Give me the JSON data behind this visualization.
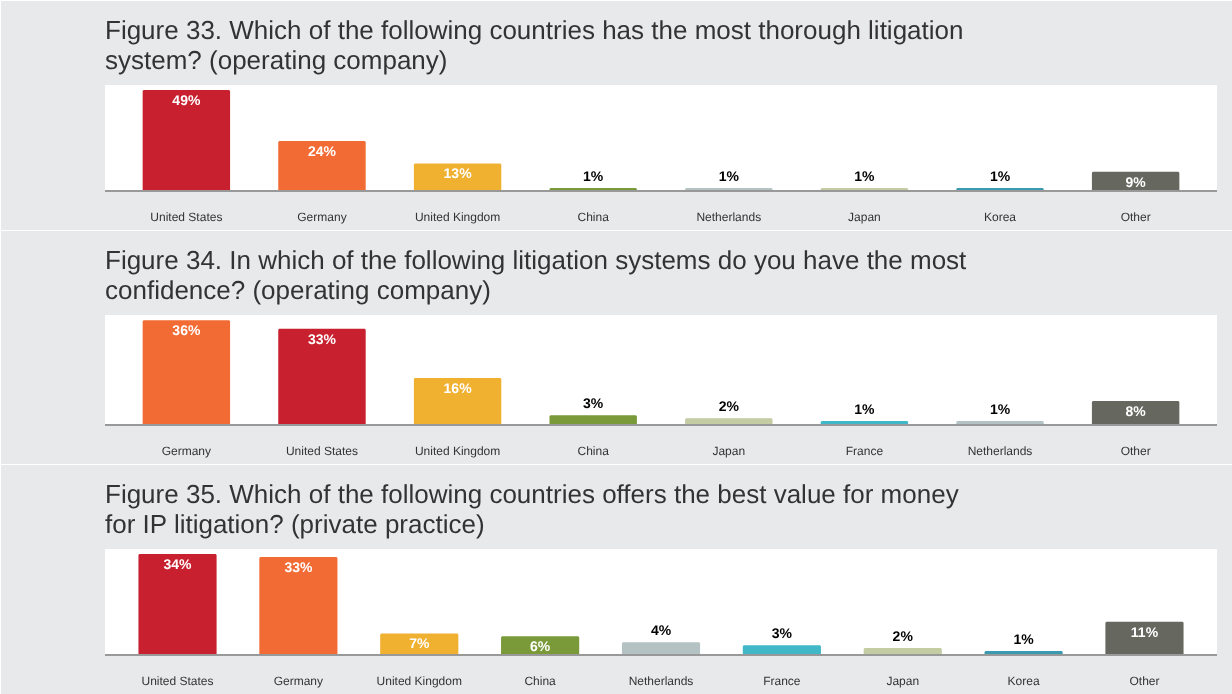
{
  "chart_data": [
    {
      "type": "bar",
      "title": "Figure 33. Which of the following countries has the most thorough litigation system? (operating company)",
      "categories": [
        "United States",
        "Germany",
        "United Kingdom",
        "China",
        "Netherlands",
        "Japan",
        "Korea",
        "Other"
      ],
      "values": [
        49,
        24,
        13,
        1,
        1,
        1,
        1,
        9
      ],
      "colors": [
        "#c8202f",
        "#f26b35",
        "#f0b030",
        "#7a9a3a",
        "#b4c2c4",
        "#c4cca4",
        "#3a9ab0",
        "#666860"
      ],
      "value_labels": [
        "49%",
        "24%",
        "13%",
        "1%",
        "1%",
        "1%",
        "1%",
        "9%"
      ]
    },
    {
      "type": "bar",
      "title": "Figure 34. In which of the following litigation systems do you have the most confidence? (operating company)",
      "categories": [
        "Germany",
        "United States",
        "United Kingdom",
        "China",
        "Japan",
        "France",
        "Netherlands",
        "Other"
      ],
      "values": [
        36,
        33,
        16,
        3,
        2,
        1,
        1,
        8
      ],
      "colors": [
        "#f26b35",
        "#c8202f",
        "#f0b030",
        "#7a9a3a",
        "#c4cca4",
        "#40b8c8",
        "#b4c2c4",
        "#666860"
      ],
      "value_labels": [
        "36%",
        "33%",
        "16%",
        "3%",
        "2%",
        "1%",
        "1%",
        "8%"
      ]
    },
    {
      "type": "bar",
      "title": "Figure 35. Which of the following countries offers the best value for money for IP litigation? (private practice)",
      "categories": [
        "United States",
        "Germany",
        "United Kingdom",
        "China",
        "Netherlands",
        "France",
        "Japan",
        "Korea",
        "Other"
      ],
      "values": [
        34,
        33,
        7,
        6,
        4,
        3,
        2,
        1,
        11
      ],
      "colors": [
        "#c8202f",
        "#f26b35",
        "#f0b030",
        "#7a9a3a",
        "#b4c2c4",
        "#40b8c8",
        "#c4cca4",
        "#3a9ab0",
        "#666860"
      ],
      "value_labels": [
        "34%",
        "33%",
        "7%",
        "6%",
        "4%",
        "3%",
        "2%",
        "1%",
        "11%"
      ]
    }
  ]
}
